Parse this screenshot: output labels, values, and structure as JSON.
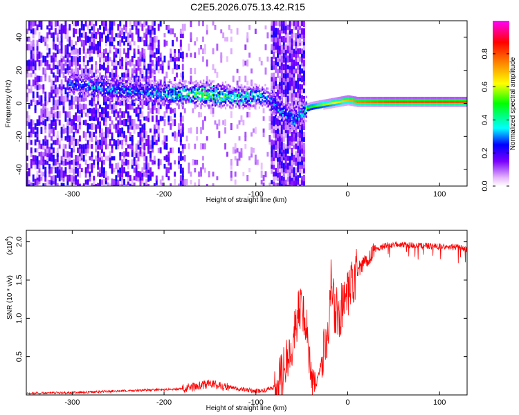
{
  "title": "C2E5.2026.075.13.42.R15",
  "chart_data": [
    {
      "type": "heatmap",
      "xlabel": "Height of straight line (km)",
      "ylabel": "Frequency (Hz)",
      "xlim": [
        -350,
        130
      ],
      "ylim": [
        -50,
        50
      ],
      "x_ticks": [
        -300,
        -200,
        -100,
        0,
        100
      ],
      "x_tick_labels": [
        "-300",
        "-200",
        "-100",
        "0",
        "100"
      ],
      "y_ticks": [
        -40,
        -20,
        0,
        20,
        40
      ],
      "y_tick_labels": [
        "-40",
        "-20",
        "0",
        "20",
        "40"
      ],
      "colorbar": {
        "label": "Normalized spectral amplitude",
        "range": [
          0,
          1
        ],
        "ticks": [
          0.0,
          0.2,
          0.4,
          0.6,
          0.8
        ],
        "tick_labels": [
          "0.0",
          "0.2",
          "0.4",
          "0.6",
          "0.8"
        ],
        "colormap": [
          "#ffffff",
          "#e6b8ff",
          "#7a00ff",
          "#0000ff",
          "#00ffff",
          "#00ff00",
          "#ffff00",
          "#ff8000",
          "#ff0000",
          "#ff00ff"
        ]
      },
      "ridge": {
        "x": [
          -300,
          -280,
          -260,
          -240,
          -220,
          -200,
          -180,
          -160,
          -140,
          -120,
          -100,
          -90,
          -60,
          -50,
          -45,
          -40,
          -30,
          -20,
          -10,
          0,
          10,
          50,
          100,
          130
        ],
        "frequency": [
          12,
          11,
          9,
          8,
          7,
          6,
          6,
          6,
          5,
          4,
          5,
          4,
          -10,
          -5,
          -3,
          -2,
          -1,
          0,
          1,
          2,
          1,
          1,
          1,
          1
        ],
        "amplitude": [
          0.25,
          0.3,
          0.3,
          0.3,
          0.3,
          0.35,
          0.45,
          0.5,
          0.45,
          0.4,
          0.35,
          0.3,
          0.3,
          0.3,
          0.5,
          0.5,
          0.55,
          0.6,
          0.65,
          0.7,
          0.75,
          0.8,
          0.8,
          0.8
        ]
      },
      "grid": false
    },
    {
      "type": "line",
      "xlabel": "Height of straight line (km)",
      "ylabel": "SNR (10 * v/v)",
      "y_multiplier": "(x10",
      "y_multiplier_exp": "4",
      "y_multiplier_close": ")",
      "xlim": [
        -350,
        130
      ],
      "ylim": [
        0,
        2.15
      ],
      "x_ticks": [
        -300,
        -200,
        -100,
        0,
        100
      ],
      "x_tick_labels": [
        "-300",
        "-200",
        "-100",
        "0",
        "100"
      ],
      "y_ticks": [
        0.5,
        1.0,
        1.5,
        2.0
      ],
      "y_tick_labels": [
        "0.5",
        "1.0",
        "1.5",
        "2.0"
      ],
      "color": "#ff0000",
      "series": [
        {
          "x": [
            -350,
            -300,
            -250,
            -200,
            -180,
            -160,
            -150,
            -140,
            -120,
            -100,
            -90,
            -80,
            -70,
            -60,
            -55,
            -50,
            -45,
            -40,
            -35,
            -30,
            -25,
            -20,
            -18,
            -15,
            -10,
            -5,
            0,
            5,
            10,
            20,
            30,
            40,
            50,
            60,
            80,
            100,
            120,
            130
          ],
          "y": [
            0.02,
            0.03,
            0.05,
            0.07,
            0.08,
            0.12,
            0.15,
            0.12,
            0.08,
            0.05,
            0.06,
            0.1,
            0.3,
            0.7,
            1.0,
            1.2,
            0.9,
            0.3,
            0.1,
            0.35,
            0.7,
            1.0,
            1.6,
            1.1,
            1.05,
            1.15,
            1.25,
            1.45,
            1.6,
            1.75,
            1.9,
            1.95,
            1.97,
            1.96,
            1.95,
            1.94,
            1.93,
            1.9
          ]
        }
      ],
      "grid": false
    }
  ]
}
